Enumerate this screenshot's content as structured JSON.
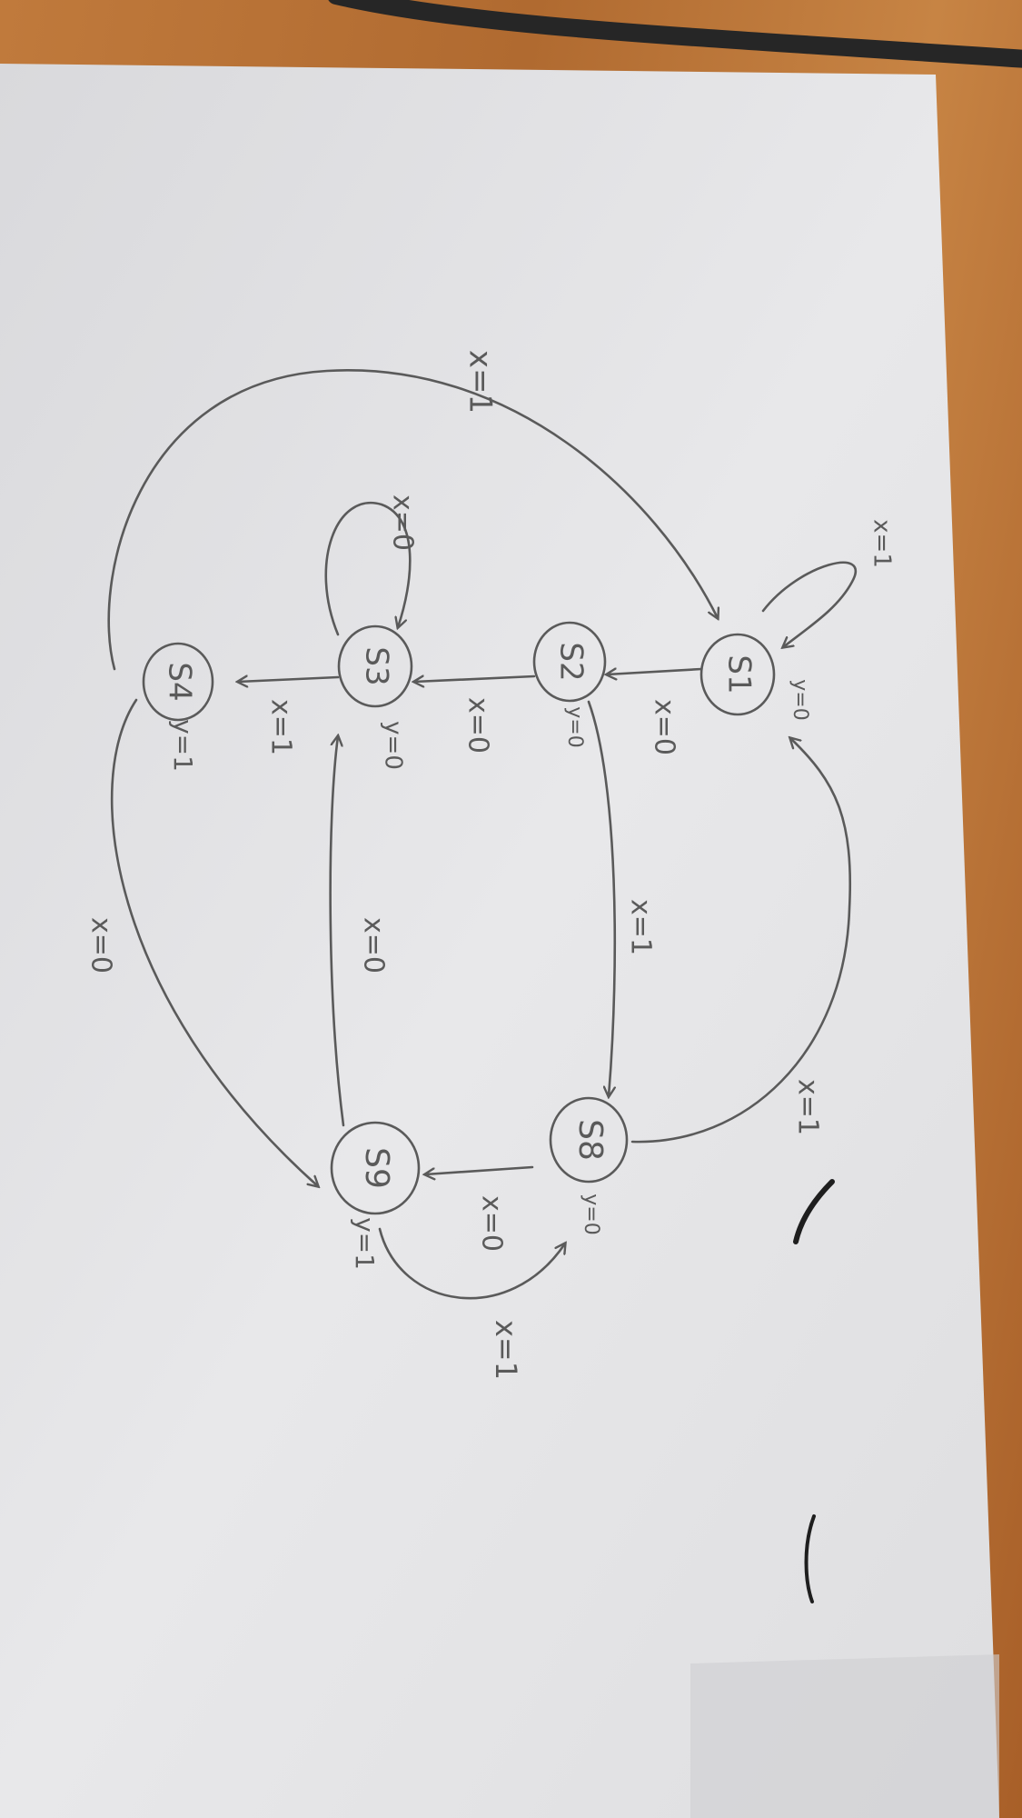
{
  "diagram": {
    "type": "state-machine",
    "states": [
      {
        "id": "S1",
        "label": "S1",
        "output": "y=0"
      },
      {
        "id": "S2",
        "label": "S2",
        "output": "y=0"
      },
      {
        "id": "S3",
        "label": "S3",
        "output": "y=0"
      },
      {
        "id": "S4",
        "label": "S4",
        "output": "y=1"
      },
      {
        "id": "S8",
        "label": "S8",
        "output": "y=0"
      },
      {
        "id": "S9",
        "label": "S9",
        "output": "y=1"
      }
    ],
    "transitions": [
      {
        "from": "S1",
        "to": "S1",
        "label": "x=1"
      },
      {
        "from": "S1",
        "to": "S2",
        "label": "x=0"
      },
      {
        "from": "S2",
        "to": "S3",
        "label": "x=0"
      },
      {
        "from": "S2",
        "to": "S8",
        "label": "x=1"
      },
      {
        "from": "S3",
        "to": "S3",
        "label": "x=0"
      },
      {
        "from": "S3",
        "to": "S4",
        "label": "x=1"
      },
      {
        "from": "S4",
        "to": "S1",
        "label": "x=1"
      },
      {
        "from": "S4",
        "to": "S9",
        "label": "x=0"
      },
      {
        "from": "S8",
        "to": "S1",
        "label": "x=1"
      },
      {
        "from": "S8",
        "to": "S9",
        "label": "x=0"
      },
      {
        "from": "S9",
        "to": "S3",
        "label": "x=0"
      },
      {
        "from": "S9",
        "to": "S8",
        "label": "x=1"
      }
    ]
  },
  "colors": {
    "paper": "#e6e6e8",
    "ink": "#5a5a5a",
    "desk": "#b8743a",
    "cable": "#2a2a2a"
  }
}
